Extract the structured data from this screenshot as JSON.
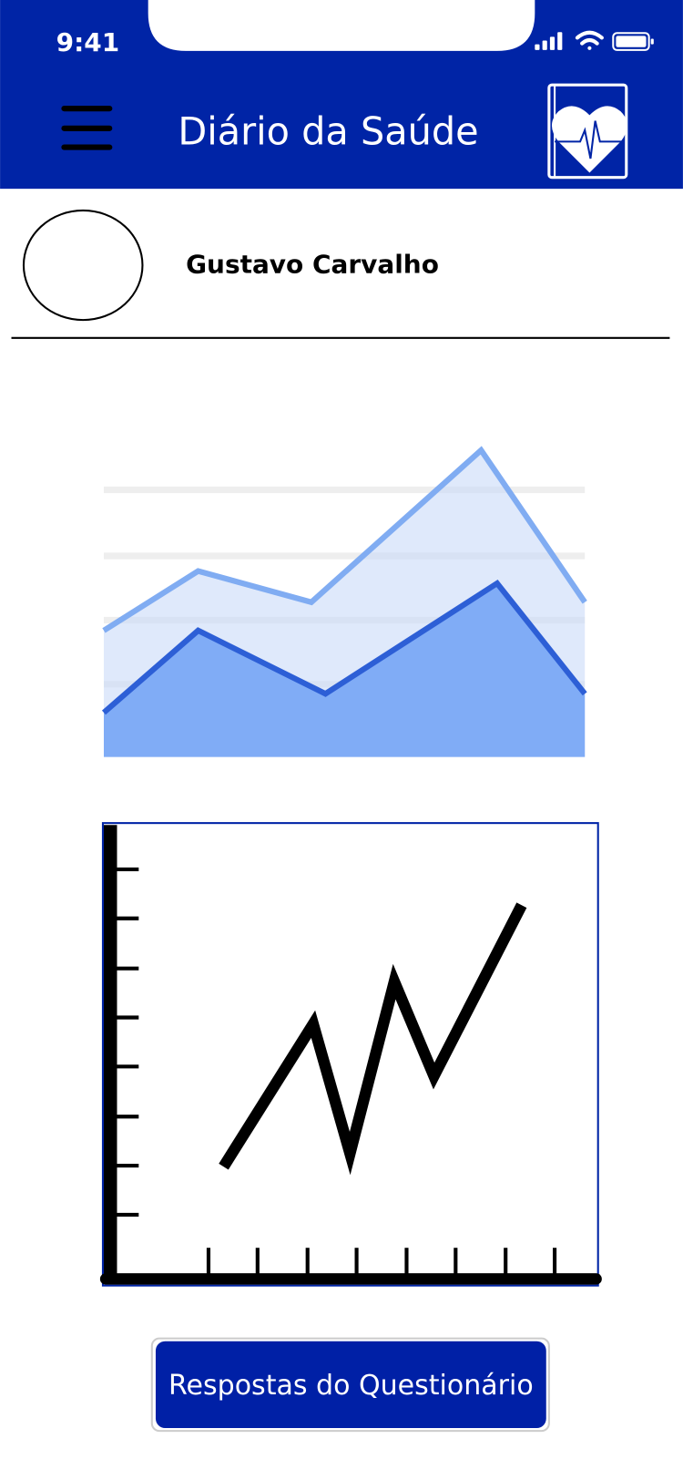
{
  "status_bar": {
    "time": "9:41"
  },
  "header": {
    "title": "Diário da Saúde"
  },
  "profile": {
    "name": "Gustavo Carvalho"
  },
  "button": {
    "label": "Respostas do Questionário"
  }
}
